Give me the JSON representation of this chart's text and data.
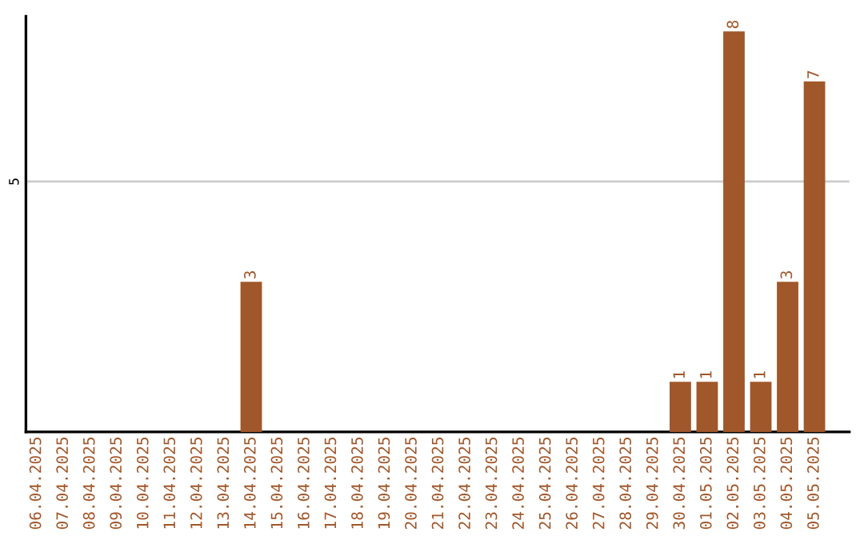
{
  "chart_data": {
    "type": "bar",
    "categories": [
      "06.04.2025",
      "07.04.2025",
      "08.04.2025",
      "09.04.2025",
      "10.04.2025",
      "11.04.2025",
      "12.04.2025",
      "13.04.2025",
      "14.04.2025",
      "15.04.2025",
      "16.04.2025",
      "17.04.2025",
      "18.04.2025",
      "19.04.2025",
      "20.04.2025",
      "21.04.2025",
      "22.04.2025",
      "23.04.2025",
      "24.04.2025",
      "25.04.2025",
      "26.04.2025",
      "27.04.2025",
      "28.04.2025",
      "29.04.2025",
      "30.04.2025",
      "01.05.2025",
      "02.05.2025",
      "03.05.2025",
      "04.05.2025",
      "05.05.2025"
    ],
    "values": [
      0,
      0,
      0,
      0,
      0,
      0,
      0,
      0,
      3,
      0,
      0,
      0,
      0,
      0,
      0,
      0,
      0,
      0,
      0,
      0,
      0,
      0,
      0,
      0,
      1,
      1,
      8,
      1,
      3,
      7
    ],
    "value_labels": [
      null,
      null,
      null,
      null,
      null,
      null,
      null,
      null,
      "3",
      null,
      null,
      null,
      null,
      null,
      null,
      null,
      null,
      null,
      null,
      null,
      null,
      null,
      null,
      null,
      "1",
      "1",
      "8",
      "1",
      "3",
      "7"
    ],
    "color": "#a0572a",
    "ylim": [
      0,
      8.3
    ],
    "yticks": [
      5
    ],
    "grid": "y"
  }
}
